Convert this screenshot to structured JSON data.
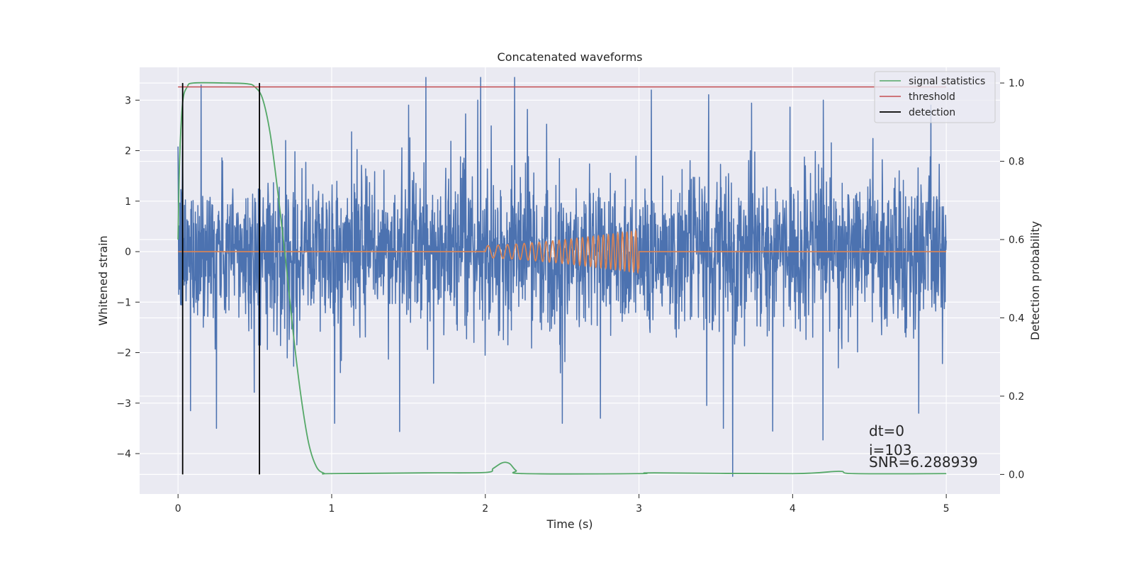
{
  "chart_data": {
    "type": "line",
    "title": "Concatenated waveforms",
    "xlabel": "Time (s)",
    "ylabel": "Whitened strain",
    "y2label": "Detection probability",
    "xlim": [
      -0.25,
      5.35
    ],
    "ylim": [
      -4.8,
      3.65
    ],
    "y2lim": [
      -0.05,
      1.04
    ],
    "xticks": [
      "0",
      "1",
      "2",
      "3",
      "4",
      "5"
    ],
    "xtick_values": [
      0,
      1,
      2,
      3,
      4,
      5
    ],
    "yticks": [
      "3",
      "2",
      "1",
      "0",
      "−1",
      "−2",
      "−3",
      "−4"
    ],
    "ytick_values": [
      3,
      2,
      1,
      0,
      -1,
      -2,
      -3,
      -4
    ],
    "y2ticks": [
      "1.0",
      "0.8",
      "0.6",
      "0.4",
      "0.2",
      "0.0"
    ],
    "y2tick_values": [
      1.0,
      0.8,
      0.6,
      0.4,
      0.2,
      0.0
    ],
    "grid": true,
    "legend_position": "top-right",
    "legend": [
      {
        "label": "signal statistics",
        "color": "#55a868"
      },
      {
        "label": "threshold",
        "color": "#c44e52"
      },
      {
        "label": "detection",
        "color": "#000000"
      }
    ],
    "series": [
      {
        "kind": "noise",
        "axis": "left",
        "color": "#4c72b0",
        "x_range": [
          0,
          5
        ],
        "typical_range": [
          -1.4,
          1.4
        ],
        "spikes": [
          {
            "x": 0.03,
            "y": 2.1
          },
          {
            "x": 0.15,
            "y": 3.3
          },
          {
            "x": 0.25,
            "y": -3.5
          },
          {
            "x": 0.7,
            "y": 2.2
          },
          {
            "x": 1.02,
            "y": -3.4
          },
          {
            "x": 1.5,
            "y": 2.9
          },
          {
            "x": 1.95,
            "y": 3.0
          },
          {
            "x": 2.5,
            "y": -3.4
          },
          {
            "x": 2.75,
            "y": -3.3
          },
          {
            "x": 3.08,
            "y": 3.2
          },
          {
            "x": 3.55,
            "y": -3.5
          },
          {
            "x": 3.61,
            "y": -4.45
          },
          {
            "x": 4.2,
            "y": 3.0
          },
          {
            "x": 4.82,
            "y": -3.2
          },
          {
            "x": 4.9,
            "y": 2.9
          }
        ]
      },
      {
        "kind": "chirp",
        "axis": "left",
        "color": "#dd8452",
        "x_range": [
          0,
          5
        ],
        "chirp_start": 2.0,
        "chirp_end": 3.0,
        "start_amplitude": 0.12,
        "end_amplitude": 0.42
      },
      {
        "name": "signal statistics",
        "axis": "right",
        "color": "#55a868",
        "x": [
          0.0,
          0.01,
          0.03,
          0.06,
          0.1,
          0.3,
          0.45,
          0.5,
          0.55,
          0.6,
          0.65,
          0.7,
          0.75,
          0.8,
          0.85,
          0.9,
          0.95,
          1.0,
          1.6,
          2.0,
          2.05,
          2.1,
          2.13,
          2.16,
          2.2,
          2.25,
          3.0,
          3.1,
          4.0,
          4.3,
          4.4,
          5.0
        ],
        "y": [
          0.6,
          0.8,
          0.95,
          0.99,
          1.0,
          1.0,
          0.998,
          0.99,
          0.96,
          0.87,
          0.72,
          0.55,
          0.36,
          0.2,
          0.08,
          0.02,
          0.003,
          0.002,
          0.004,
          0.005,
          0.015,
          0.028,
          0.031,
          0.027,
          0.01,
          0.002,
          0.002,
          0.004,
          0.002,
          0.008,
          0.002,
          0.002
        ]
      },
      {
        "name": "threshold",
        "axis": "right",
        "color": "#c44e52",
        "x": [
          0,
          5
        ],
        "y": [
          0.99,
          0.99
        ]
      },
      {
        "name": "detection",
        "axis": "right",
        "color": "#000000",
        "lines_x": [
          0.03,
          0.53
        ],
        "y_range": [
          0.0,
          1.0
        ]
      }
    ],
    "annotations": [
      "dt=0",
      "i=103",
      "SNR=6.288939"
    ]
  }
}
